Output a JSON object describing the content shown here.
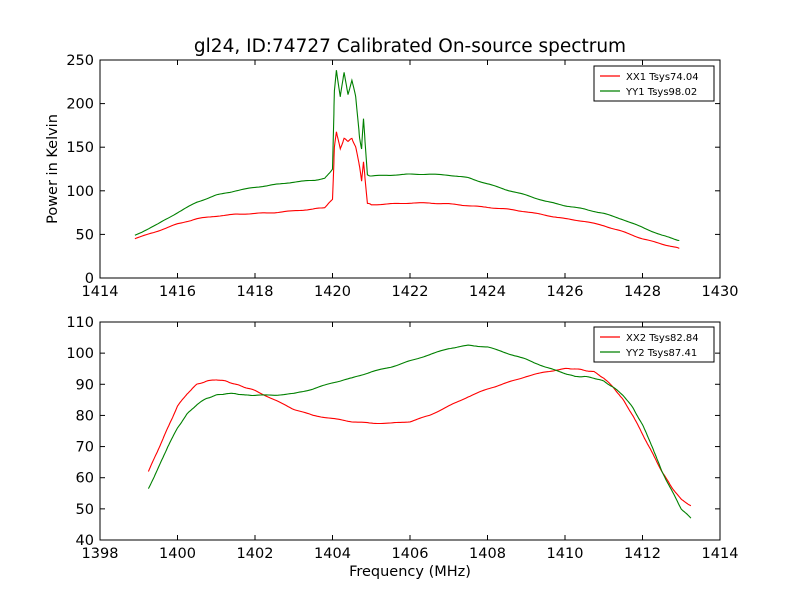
{
  "chart_data": [
    {
      "type": "line",
      "title": "gl24, ID:74727 Calibrated On-source spectrum",
      "xlabel": "",
      "ylabel": "Power in Kelvin",
      "xlim": [
        1414,
        1430
      ],
      "ylim": [
        0,
        250
      ],
      "xticks": [
        1414,
        1416,
        1418,
        1420,
        1422,
        1424,
        1426,
        1428,
        1430
      ],
      "yticks": [
        0,
        50,
        100,
        150,
        200,
        250
      ],
      "grid": false,
      "legend_position": "top-right",
      "series": [
        {
          "name": "XX1 Tsys74.04",
          "color": "#ff0000",
          "x": [
            1414.9,
            1415.5,
            1416.0,
            1416.5,
            1417.0,
            1417.5,
            1418.0,
            1418.5,
            1419.0,
            1419.5,
            1419.8,
            1420.0,
            1420.05,
            1420.1,
            1420.2,
            1420.3,
            1420.4,
            1420.5,
            1420.6,
            1420.7,
            1420.75,
            1420.8,
            1420.9,
            1421.0,
            1421.5,
            1422.0,
            1422.5,
            1423.0,
            1423.5,
            1424.0,
            1424.5,
            1425.0,
            1425.5,
            1426.0,
            1426.5,
            1427.0,
            1427.5,
            1428.0,
            1428.5,
            1428.95
          ],
          "y": [
            45,
            54,
            62,
            68,
            71,
            73,
            74,
            75,
            77,
            79,
            81,
            90,
            150,
            168,
            148,
            160,
            157,
            160,
            150,
            128,
            111,
            133,
            86,
            84,
            85,
            86,
            86,
            85,
            83,
            81,
            79,
            76,
            72,
            68,
            65,
            60,
            53,
            45,
            39,
            34
          ]
        },
        {
          "name": "YY1 Tsys98.02",
          "color": "#008000",
          "x": [
            1414.9,
            1415.5,
            1416.0,
            1416.5,
            1417.0,
            1417.5,
            1418.0,
            1418.5,
            1419.0,
            1419.5,
            1419.8,
            1420.0,
            1420.05,
            1420.1,
            1420.2,
            1420.3,
            1420.4,
            1420.5,
            1420.6,
            1420.7,
            1420.75,
            1420.8,
            1420.9,
            1421.0,
            1421.5,
            1422.0,
            1422.5,
            1423.0,
            1423.5,
            1424.0,
            1424.5,
            1425.0,
            1425.5,
            1426.0,
            1426.5,
            1427.0,
            1427.5,
            1428.0,
            1428.5,
            1428.95
          ],
          "y": [
            49,
            62,
            75,
            87,
            95,
            100,
            104,
            107,
            110,
            112,
            114,
            125,
            215,
            238,
            208,
            236,
            210,
            227,
            208,
            160,
            148,
            183,
            118,
            117,
            118,
            119,
            119,
            118,
            115,
            108,
            101,
            95,
            88,
            83,
            79,
            74,
            67,
            58,
            49,
            43
          ]
        }
      ]
    },
    {
      "type": "line",
      "title": "",
      "xlabel": "Frequency (MHz)",
      "ylabel": "",
      "xlim": [
        1398,
        1414
      ],
      "ylim": [
        40,
        110
      ],
      "xticks": [
        1398,
        1400,
        1402,
        1404,
        1406,
        1408,
        1410,
        1412,
        1414
      ],
      "yticks": [
        40,
        50,
        60,
        70,
        80,
        90,
        100,
        110
      ],
      "grid": false,
      "legend_position": "top-right",
      "series": [
        {
          "name": "XX2 Tsys82.84",
          "color": "#ff0000",
          "x": [
            1399.25,
            1399.5,
            1399.75,
            1400.0,
            1400.25,
            1400.5,
            1400.75,
            1401.0,
            1401.25,
            1401.5,
            1401.75,
            1402.0,
            1402.5,
            1403.0,
            1403.5,
            1404.0,
            1404.5,
            1405.0,
            1405.5,
            1406.0,
            1406.5,
            1407.0,
            1407.5,
            1408.0,
            1408.5,
            1409.0,
            1409.5,
            1410.0,
            1410.25,
            1410.5,
            1410.75,
            1411.0,
            1411.25,
            1411.5,
            1411.75,
            1412.0,
            1412.25,
            1412.5,
            1412.75,
            1413.0,
            1413.25
          ],
          "y": [
            62,
            69,
            76,
            83,
            87,
            90,
            91,
            91.5,
            91,
            90,
            89,
            88,
            85,
            82,
            80,
            79,
            78,
            77.5,
            77.5,
            78,
            80,
            83,
            86,
            88.5,
            90.5,
            92.5,
            94,
            95,
            95,
            94.5,
            94,
            92,
            89,
            85,
            80,
            74,
            68,
            62,
            57,
            53,
            51
          ]
        },
        {
          "name": "YY2 Tsys87.41",
          "color": "#008000",
          "x": [
            1399.25,
            1399.5,
            1399.75,
            1400.0,
            1400.25,
            1400.5,
            1400.75,
            1401.0,
            1401.25,
            1401.5,
            1401.75,
            1402.0,
            1402.5,
            1403.0,
            1403.5,
            1404.0,
            1404.5,
            1405.0,
            1405.5,
            1406.0,
            1406.5,
            1407.0,
            1407.5,
            1408.0,
            1408.5,
            1409.0,
            1409.5,
            1410.0,
            1410.25,
            1410.5,
            1410.75,
            1411.0,
            1411.25,
            1411.5,
            1411.75,
            1412.0,
            1412.25,
            1412.5,
            1412.75,
            1413.0,
            1413.25
          ],
          "y": [
            56.5,
            63,
            70,
            76,
            80.5,
            83.5,
            85.5,
            86.5,
            87,
            87,
            86.5,
            86.5,
            86.5,
            87,
            88.5,
            90.5,
            92,
            94,
            95.5,
            97.5,
            99.5,
            101.5,
            102.5,
            102,
            100,
            98,
            95.5,
            93.5,
            92.5,
            92.5,
            92,
            91,
            89,
            86.5,
            82.5,
            77,
            70,
            62,
            56,
            50,
            47
          ]
        }
      ]
    }
  ]
}
